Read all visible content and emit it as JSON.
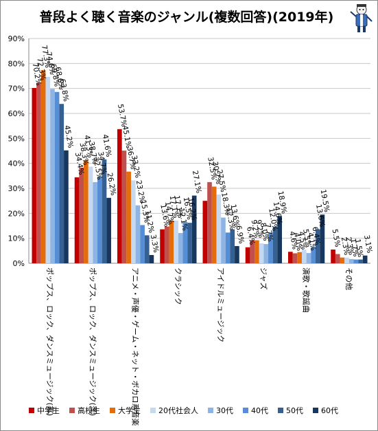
{
  "chart_data": {
    "type": "bar",
    "title": "普段よく聴く音楽のジャンル(複数回答)(2019年)",
    "xlabel": "",
    "ylabel": "",
    "ylim": [
      0,
      90
    ],
    "yticks": [
      "0%",
      "10%",
      "20%",
      "30%",
      "40%",
      "50%",
      "60%",
      "70%",
      "80%",
      "90%"
    ],
    "grid": true,
    "legend_position": "bottom",
    "categories": [
      "ポップス、ロック、ダンスミュージック(邦)",
      "ポップス、ロック、ダンスミュージック(洋)",
      "アニメ・声優・ゲーム・ネット・ボカロ系音楽",
      "クラシック",
      "アイドルミュージック",
      "ジャズ",
      "演歌・歌謡曲",
      "その他"
    ],
    "series": [
      {
        "name": "中学生",
        "color": "#c00000",
        "values": [
          70.2,
          34.4,
          53.7,
          13.6,
          25.0,
          6.4,
          4.6,
          5.5
        ],
        "labels": [
          "70.2%",
          "34.4%",
          "53.7%",
          "13.6%",
          "",
          "6.4%",
          "4.6%",
          "5.5%"
        ]
      },
      {
        "name": "高校生",
        "color": "#c0504d",
        "values": [
          72.3,
          38.3,
          45.1,
          14.7,
          32.5,
          9.2,
          4.0,
          3.7
        ],
        "labels": [
          "72.3%",
          "38.3%",
          "45.1%",
          "14.7%",
          "32.5%",
          "9.2%",
          "4.0%",
          ""
        ]
      },
      {
        "name": "大学生",
        "color": "#e46c0a",
        "values": [
          77.3,
          41.3,
          36.7,
          17.1,
          30.7,
          9.2,
          4.5,
          2.3
        ],
        "labels": [
          "77.3%",
          "41.3%",
          "36.7%",
          "17.1%",
          "30.7%",
          "9.2%",
          "4.5%",
          "2.3%"
        ]
      },
      {
        "name": "20代社会人",
        "color": "#c6d9f1",
        "values": [
          74.6,
          38.7,
          33.2,
          17.1,
          27.5,
          8.0,
          5.5,
          2.3
        ],
        "labels": [
          "74.6%",
          "38.7%",
          "33.2%",
          "17.1%",
          "27.5%",
          "8.0%",
          "5.5%",
          "2.3%"
        ]
      },
      {
        "name": "30代",
        "color": "#8eb4e3",
        "values": [
          69.8,
          32.5,
          23.2,
          12.1,
          18.3,
          7.7,
          4.1,
          1.7
        ],
        "labels": [
          "69.8%",
          "32.5%",
          "23.2%",
          "12.1%",
          "18.3%",
          "7.7%",
          "4.1%",
          "1.7%"
        ]
      },
      {
        "name": "40代",
        "color": "#558ed5",
        "values": [
          68.6,
          34.7,
          15.3,
          16.5,
          12.3,
          12.0,
          6.4,
          1.5
        ],
        "labels": [
          "68.6%",
          "34.7%",
          "15.3%",
          "16.5%",
          "12.3%",
          "12.0%",
          "6.4%",
          "1.5%"
        ]
      },
      {
        "name": "50代",
        "color": "#376092",
        "values": [
          63.8,
          41.6,
          11.2,
          16.2,
          13.6,
          14.6,
          13.6,
          1.5
        ],
        "labels": [
          "63.8%",
          "41.6%",
          "11.2%",
          "16.2%",
          "13.6%",
          "14.6%",
          "13.6%",
          ""
        ]
      },
      {
        "name": "60代",
        "color": "#17375e",
        "values": [
          45.2,
          26.2,
          3.3,
          27.1,
          6.9,
          18.9,
          19.5,
          3.1
        ],
        "labels": [
          "45.2%",
          "26.2%",
          "3.3%",
          "27.1%",
          "6.9%",
          "18.9%",
          "19.5%",
          "3.1%"
        ]
      }
    ]
  }
}
